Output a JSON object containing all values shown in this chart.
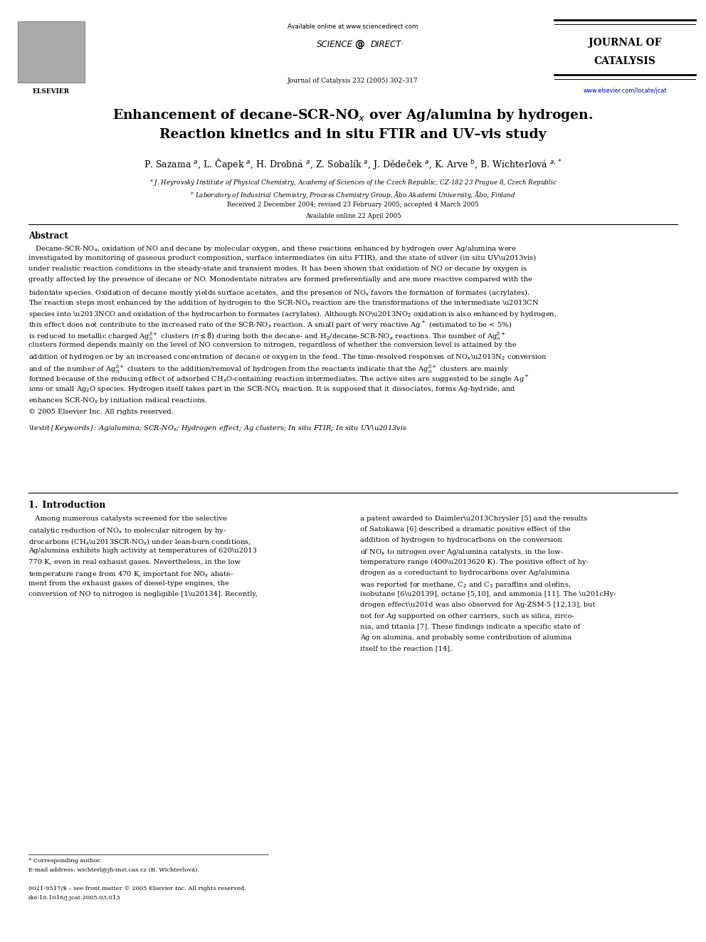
{
  "background_color": "#ffffff",
  "page_width": 9.92,
  "page_height": 13.23,
  "available_online": "Available online at www.sciencedirect.com",
  "sciencedirect_text": "SCIENCE  @  DIRECT",
  "journal_label": "Journal of Catalysis 232 (2005) 302–317",
  "journal_name_line1": "JOURNAL OF",
  "journal_name_line2": "CATALYSIS",
  "journal_url": "www.elsevier.com/locate/jcat",
  "title_line1": "Enhancement of decane-SCR-NO$_x$ over Ag/alumina by hydrogen.",
  "title_line2": "Reaction kinetics and in situ FTIR and UV–vis study",
  "authors_line": "P. Sazama $^{a}$, L. Čapek $^{a}$, H. Drobná $^{a}$, Z. Sobalík $^{a}$, J. Dědeček $^{a}$, K. Arve $^{b}$, B. Wichterlová $^{a,*}$",
  "affil_a": "$^{a}$ J. Heyrovský Institute of Physical Chemistry, Academy of Sciences of the Czech Republic, CZ-182 23 Prague 8, Czech Republic",
  "affil_b": "$^{b}$ Laboratory of Industrial Chemistry, Process Chemistry Group, Åbo Akademi University, Åbo, Finland",
  "received": "Received 2 December 2004; revised 23 February 2005; accepted 4 March 2005",
  "available_online2": "Available online 22 April 2005",
  "abstract_title": "Abstract",
  "copyright": "© 2005 Elsevier Inc. All rights reserved.",
  "keywords_line": "Keywords: Ag/alumina; SCR-NO$_x$; Hydrogen effect; Ag clusters; In situ FTIR; In situ UV–vis",
  "section1_title": "1. Introduction",
  "footer_star": "* Corresponding author.",
  "footer_email": "E-mail address: wichterl@jh-inst.cas.cz (B. Wichterlová).",
  "footer_issn": "0021-9517/$ – see front matter © 2005 Elsevier Inc. All rights reserved.",
  "footer_doi": "doi:10.1016/j.jcat.2005.03.013"
}
